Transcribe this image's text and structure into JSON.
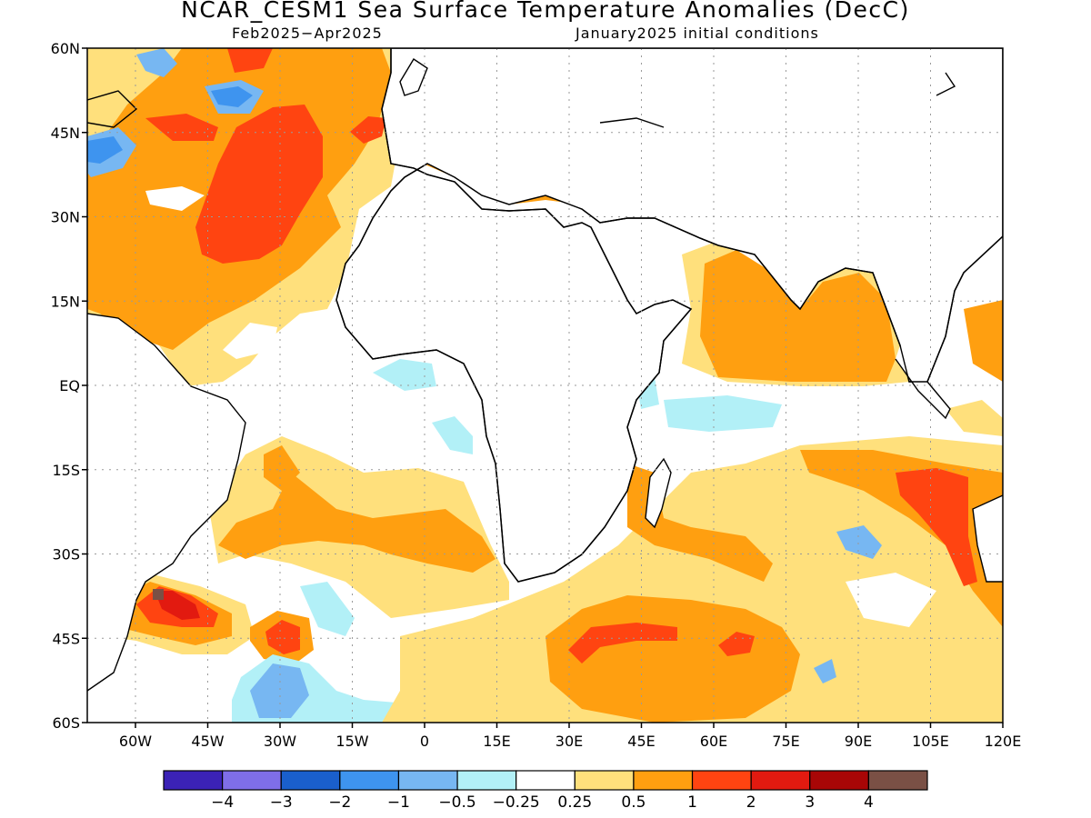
{
  "title": "NCAR_CESM1 Sea Surface Temperature Anomalies (DecC)",
  "subtitle_left": "Feb2025−Apr2025",
  "subtitle_right": "January2025 initial conditions",
  "colors": {
    "c_m4": "#3b22b6",
    "c_m3": "#7f6ee8",
    "c_m2": "#1a5fcc",
    "c_m1": "#3e94ef",
    "c_m05": "#77b7f2",
    "c_m025": "#b2f0f7",
    "c_0": "#ffffff",
    "c_025": "#ffe07c",
    "c_05": "#ff9f10",
    "c_1": "#ff4411",
    "c_2": "#e21a10",
    "c_3": "#a80606",
    "c_4": "#7a5045",
    "land": "#ffffff",
    "coast": "#000000",
    "grid": "#9a9a9a"
  },
  "axes": {
    "lon_ticks": [
      "60W",
      "45W",
      "30W",
      "15W",
      "0",
      "15E",
      "30E",
      "45E",
      "60E",
      "75E",
      "90E",
      "105E",
      "120E"
    ],
    "lat_ticks": [
      "60N",
      "45N",
      "30N",
      "15N",
      "EQ",
      "15S",
      "30S",
      "45S",
      "60S"
    ],
    "lon_range": [
      -70,
      120
    ],
    "lat_range": [
      -60,
      60
    ]
  },
  "colorbar": {
    "labels": [
      "−4",
      "−3",
      "−2",
      "−1",
      "−0.5",
      "−0.25",
      "0.25",
      "0.5",
      "1",
      "2",
      "3",
      "4"
    ]
  }
}
